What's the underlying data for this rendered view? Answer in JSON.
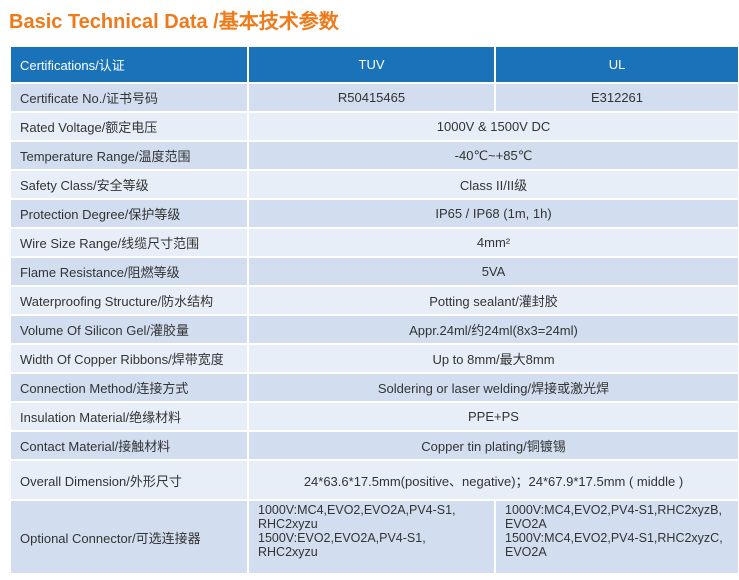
{
  "title": "Basic Technical Data /基本技术参数",
  "header": {
    "label": "Certifications/认证",
    "col1": "TUV",
    "col2": "UL"
  },
  "certificate": {
    "label": "Certificate No./证书号码",
    "col1": "R50415465",
    "col2": "E312261"
  },
  "rows": [
    {
      "label": "Rated Voltage/额定电压",
      "value": "1000V  & 1500V DC"
    },
    {
      "label": "Temperature Range/温度范围",
      "value": "-40℃~+85℃"
    },
    {
      "label": "Safety Class/安全等级",
      "value": "Class II/II级"
    },
    {
      "label": "Protection Degree/保护等级",
      "value": "IP65 / IP68 (1m, 1h)"
    },
    {
      "label": "Wire Size Range/线缆尺寸范围",
      "value": "4mm²"
    },
    {
      "label": "Flame Resistance/阻燃等级",
      "value": "5VA"
    },
    {
      "label": "Waterproofing Structure/防水结构",
      "value": "Potting sealant/灌封胶"
    },
    {
      "label": "Volume Of Silicon Gel/灌胶量",
      "value": "Appr.24ml/约24ml(8x3=24ml)"
    },
    {
      "label": "Width Of Copper Ribbons/焊带宽度",
      "value": "Up to 8mm/最大8mm"
    },
    {
      "label": "Connection Method/连接方式",
      "value": "Soldering or laser welding/焊接或激光焊"
    },
    {
      "label": "Insulation Material/绝缘材料",
      "value": "PPE+PS"
    },
    {
      "label": "Contact Material/接触材料",
      "value": "Copper tin plating/铜镀锡"
    }
  ],
  "overall": {
    "label": "Overall Dimension/外形尺寸",
    "value": "24*63.6*17.5mm(positive、negative)；24*67.9*17.5mm ( middle )"
  },
  "optional": {
    "label": "Optional Connector/可选连接器",
    "tuv_1000": "1000V:MC4,EVO2,EVO2A,PV4-S1, RHC2xyzu",
    "tuv_1500": "1500V:EVO2,EVO2A,PV4-S1, RHC2xyzu",
    "ul_1000": "1000V:MC4,EVO2,PV4-S1,RHC2xyzB, EVO2A",
    "ul_1500": "1500V:MC4,EVO2,PV4-S1,RHC2xyzC, EVO2A"
  }
}
